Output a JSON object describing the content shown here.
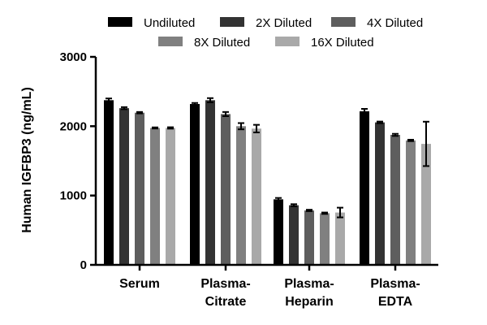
{
  "chart_data": {
    "type": "bar",
    "title": "",
    "xlabel": "",
    "ylabel": "Human IGFBP3 (ng/mL)",
    "ylim": [
      0,
      3000
    ],
    "yticks": [
      0,
      1000,
      2000,
      3000
    ],
    "legend_position": "top",
    "categories": [
      [
        "Serum"
      ],
      [
        "Plasma-",
        "Citrate"
      ],
      [
        "Plasma-",
        "Heparin"
      ],
      [
        "Plasma-",
        "EDTA"
      ]
    ],
    "series": [
      {
        "name": "Undiluted",
        "color": "#000000",
        "values": [
          2375,
          2320,
          945,
          2215
        ],
        "errors": [
          25,
          15,
          20,
          35
        ]
      },
      {
        "name": "2X Diluted",
        "color": "#333333",
        "values": [
          2260,
          2375,
          860,
          2055
        ],
        "errors": [
          15,
          30,
          15,
          12
        ]
      },
      {
        "name": "4X Diluted",
        "color": "#5e5e5e",
        "values": [
          2195,
          2175,
          785,
          1875
        ],
        "errors": [
          10,
          30,
          10,
          15
        ]
      },
      {
        "name": "8X Diluted",
        "color": "#808080",
        "values": [
          1975,
          2000,
          745,
          1795
        ],
        "errors": [
          8,
          45,
          10,
          10
        ]
      },
      {
        "name": "16X Diluted",
        "color": "#a9a9a9",
        "values": [
          1975,
          1965,
          755,
          1745
        ],
        "errors": [
          10,
          55,
          70,
          320
        ]
      }
    ]
  }
}
